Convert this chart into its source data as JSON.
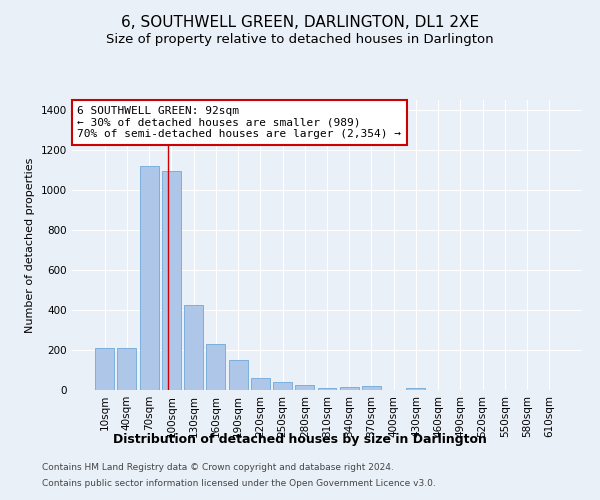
{
  "title": "6, SOUTHWELL GREEN, DARLINGTON, DL1 2XE",
  "subtitle": "Size of property relative to detached houses in Darlington",
  "xlabel": "Distribution of detached houses by size in Darlington",
  "ylabel": "Number of detached properties",
  "footer_line1": "Contains HM Land Registry data © Crown copyright and database right 2024.",
  "footer_line2": "Contains public sector information licensed under the Open Government Licence v3.0.",
  "bar_labels": [
    "10sqm",
    "40sqm",
    "70sqm",
    "100sqm",
    "130sqm",
    "160sqm",
    "190sqm",
    "220sqm",
    "250sqm",
    "280sqm",
    "310sqm",
    "340sqm",
    "370sqm",
    "400sqm",
    "430sqm",
    "460sqm",
    "490sqm",
    "520sqm",
    "550sqm",
    "580sqm",
    "610sqm"
  ],
  "bar_values": [
    208,
    210,
    1120,
    1095,
    425,
    230,
    148,
    60,
    38,
    25,
    12,
    15,
    18,
    0,
    12,
    0,
    0,
    0,
    0,
    0,
    0
  ],
  "bar_color": "#aec6e8",
  "bar_edgecolor": "#6ea8d8",
  "ylim": [
    0,
    1450
  ],
  "yticks": [
    0,
    200,
    400,
    600,
    800,
    1000,
    1200,
    1400
  ],
  "vline_x": 2.85,
  "annotation_line1": "6 SOUTHWELL GREEN: 92sqm",
  "annotation_line2": "← 30% of detached houses are smaller (989)",
  "annotation_line3": "70% of semi-detached houses are larger (2,354) →",
  "annotation_box_color": "#ffffff",
  "annotation_box_edgecolor": "#cc0000",
  "background_color": "#eaf0f8",
  "vline_color": "#cc0000",
  "title_fontsize": 11,
  "subtitle_fontsize": 9.5,
  "xlabel_fontsize": 9,
  "ylabel_fontsize": 8,
  "tick_fontsize": 7.5,
  "annotation_fontsize": 8,
  "footer_fontsize": 6.5
}
